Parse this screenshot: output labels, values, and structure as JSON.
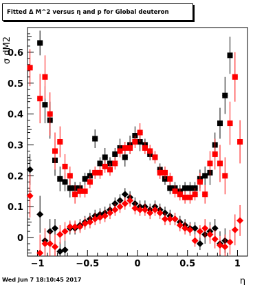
{
  "title": "Fitted Δ M^2 versus η and p for Global deuteron",
  "timestamp": "Wed Jun  7 18:10:45 2017",
  "chart_data": {
    "type": "scatter",
    "title": "Fitted Δ M^2 versus η and p for Global deuteron",
    "xlabel": "η",
    "ylabel": "σ dM2",
    "xlim": [
      -1.1,
      1.1
    ],
    "ylim": [
      -0.06,
      0.68
    ],
    "xticks": [
      -1,
      -0.5,
      0,
      0.5,
      1
    ],
    "xtick_labels": [
      "−1",
      "−0.5",
      "0",
      "0.5",
      "1"
    ],
    "yticks": [
      0,
      0.1,
      0.2,
      0.3,
      0.4,
      0.5,
      0.6
    ],
    "ytick_labels": [
      "0",
      "0.1",
      "0.2",
      "0.3",
      "0.4",
      "0.5",
      "0.6"
    ],
    "grid": false,
    "series": [
      {
        "color": "#000000",
        "marker": "square",
        "points": [
          [
            -0.975,
            0.63,
            0.04
          ],
          [
            -0.925,
            0.43,
            0.06
          ],
          [
            -0.875,
            0.38,
            0.06
          ],
          [
            -0.825,
            0.25,
            0.05
          ],
          [
            -0.775,
            0.19,
            0.04
          ],
          [
            -0.725,
            0.18,
            0.03
          ],
          [
            -0.675,
            0.16,
            0.03
          ],
          [
            -0.625,
            0.16,
            0.02
          ],
          [
            -0.575,
            0.16,
            0.02
          ],
          [
            -0.525,
            0.19,
            0.02
          ],
          [
            -0.475,
            0.2,
            0.02
          ],
          [
            -0.425,
            0.32,
            0.03
          ],
          [
            -0.375,
            0.24,
            0.02
          ],
          [
            -0.325,
            0.26,
            0.03
          ],
          [
            -0.275,
            0.24,
            0.02
          ],
          [
            -0.225,
            0.27,
            0.02
          ],
          [
            -0.175,
            0.29,
            0.03
          ],
          [
            -0.125,
            0.26,
            0.03
          ],
          [
            -0.075,
            0.3,
            0.03
          ],
          [
            -0.025,
            0.33,
            0.03
          ],
          [
            0.025,
            0.31,
            0.03
          ],
          [
            0.075,
            0.3,
            0.02
          ],
          [
            0.125,
            0.27,
            0.02
          ],
          [
            0.175,
            0.26,
            0.02
          ],
          [
            0.225,
            0.22,
            0.02
          ],
          [
            0.275,
            0.19,
            0.02
          ],
          [
            0.325,
            0.16,
            0.02
          ],
          [
            0.375,
            0.16,
            0.02
          ],
          [
            0.425,
            0.15,
            0.02
          ],
          [
            0.475,
            0.16,
            0.02
          ],
          [
            0.525,
            0.16,
            0.02
          ],
          [
            0.575,
            0.16,
            0.02
          ],
          [
            0.625,
            0.19,
            0.03
          ],
          [
            0.675,
            0.2,
            0.03
          ],
          [
            0.725,
            0.21,
            0.04
          ],
          [
            0.775,
            0.3,
            0.04
          ],
          [
            0.825,
            0.37,
            0.05
          ],
          [
            0.875,
            0.46,
            0.06
          ],
          [
            0.925,
            0.59,
            0.06
          ]
        ]
      },
      {
        "color": "#ff0000",
        "marker": "square",
        "points": [
          [
            -1.075,
            0.55,
            0.06
          ],
          [
            -0.975,
            0.45,
            0.08
          ],
          [
            -0.925,
            0.52,
            0.07
          ],
          [
            -0.875,
            0.4,
            0.07
          ],
          [
            -0.825,
            0.28,
            0.06
          ],
          [
            -0.775,
            0.31,
            0.05
          ],
          [
            -0.725,
            0.23,
            0.04
          ],
          [
            -0.675,
            0.2,
            0.03
          ],
          [
            -0.625,
            0.14,
            0.03
          ],
          [
            -0.575,
            0.15,
            0.02
          ],
          [
            -0.525,
            0.15,
            0.02
          ],
          [
            -0.475,
            0.18,
            0.02
          ],
          [
            -0.425,
            0.21,
            0.02
          ],
          [
            -0.375,
            0.21,
            0.02
          ],
          [
            -0.325,
            0.23,
            0.02
          ],
          [
            -0.275,
            0.22,
            0.02
          ],
          [
            -0.225,
            0.24,
            0.02
          ],
          [
            -0.175,
            0.28,
            0.02
          ],
          [
            -0.125,
            0.29,
            0.02
          ],
          [
            -0.075,
            0.29,
            0.02
          ],
          [
            -0.025,
            0.31,
            0.02
          ],
          [
            0.025,
            0.34,
            0.03
          ],
          [
            0.075,
            0.29,
            0.02
          ],
          [
            0.125,
            0.28,
            0.02
          ],
          [
            0.175,
            0.26,
            0.02
          ],
          [
            0.225,
            0.21,
            0.02
          ],
          [
            0.275,
            0.21,
            0.02
          ],
          [
            0.325,
            0.19,
            0.02
          ],
          [
            0.375,
            0.15,
            0.02
          ],
          [
            0.425,
            0.14,
            0.02
          ],
          [
            0.475,
            0.13,
            0.02
          ],
          [
            0.525,
            0.13,
            0.02
          ],
          [
            0.575,
            0.14,
            0.02
          ],
          [
            0.625,
            0.18,
            0.03
          ],
          [
            0.675,
            0.14,
            0.03
          ],
          [
            0.725,
            0.24,
            0.04
          ],
          [
            0.775,
            0.27,
            0.05
          ],
          [
            0.825,
            0.24,
            0.06
          ],
          [
            0.875,
            0.2,
            0.06
          ],
          [
            0.925,
            0.37,
            0.07
          ],
          [
            0.975,
            0.52,
            0.08
          ],
          [
            1.025,
            0.31,
            0.07
          ]
        ]
      },
      {
        "color": "#000000",
        "marker": "diamond",
        "points": [
          [
            -1.075,
            0.22,
            0.05
          ],
          [
            -0.975,
            0.075,
            0.06
          ],
          [
            -0.925,
            -0.01,
            0.04
          ],
          [
            -0.875,
            0.02,
            0.04
          ],
          [
            -0.825,
            0.03,
            0.03
          ],
          [
            -0.775,
            -0.045,
            0.03
          ],
          [
            -0.725,
            -0.04,
            0.03
          ],
          [
            -0.675,
            0.03,
            0.02
          ],
          [
            -0.625,
            0.03,
            0.02
          ],
          [
            -0.575,
            0.04,
            0.02
          ],
          [
            -0.525,
            0.05,
            0.02
          ],
          [
            -0.475,
            0.06,
            0.02
          ],
          [
            -0.425,
            0.07,
            0.02
          ],
          [
            -0.375,
            0.075,
            0.02
          ],
          [
            -0.325,
            0.08,
            0.02
          ],
          [
            -0.275,
            0.09,
            0.02
          ],
          [
            -0.225,
            0.11,
            0.02
          ],
          [
            -0.175,
            0.12,
            0.02
          ],
          [
            -0.125,
            0.14,
            0.02
          ],
          [
            -0.075,
            0.13,
            0.02
          ],
          [
            -0.025,
            0.11,
            0.02
          ],
          [
            0.025,
            0.1,
            0.02
          ],
          [
            0.075,
            0.1,
            0.02
          ],
          [
            0.125,
            0.09,
            0.02
          ],
          [
            0.175,
            0.1,
            0.02
          ],
          [
            0.225,
            0.09,
            0.02
          ],
          [
            0.275,
            0.08,
            0.02
          ],
          [
            0.325,
            0.07,
            0.02
          ],
          [
            0.375,
            0.06,
            0.02
          ],
          [
            0.425,
            0.05,
            0.02
          ],
          [
            0.475,
            0.04,
            0.02
          ],
          [
            0.525,
            0.03,
            0.02
          ],
          [
            0.575,
            0.03,
            0.02
          ],
          [
            0.625,
            -0.02,
            0.02
          ],
          [
            0.675,
            0.01,
            0.03
          ],
          [
            0.725,
            0.02,
            0.03
          ],
          [
            0.775,
            0.03,
            0.03
          ],
          [
            0.825,
            -0.02,
            0.04
          ],
          [
            0.875,
            -0.01,
            0.04
          ]
        ]
      },
      {
        "color": "#ff0000",
        "marker": "diamond",
        "points": [
          [
            -1.075,
            0.135,
            0.07
          ],
          [
            -0.975,
            -0.05,
            0.06
          ],
          [
            -0.925,
            -0.02,
            0.05
          ],
          [
            -0.875,
            -0.02,
            0.04
          ],
          [
            -0.825,
            -0.03,
            0.04
          ],
          [
            -0.775,
            0.01,
            0.03
          ],
          [
            -0.725,
            0.02,
            0.03
          ],
          [
            -0.675,
            0.035,
            0.02
          ],
          [
            -0.625,
            0.035,
            0.02
          ],
          [
            -0.575,
            0.035,
            0.02
          ],
          [
            -0.525,
            0.045,
            0.02
          ],
          [
            -0.475,
            0.05,
            0.02
          ],
          [
            -0.425,
            0.06,
            0.02
          ],
          [
            -0.375,
            0.065,
            0.02
          ],
          [
            -0.325,
            0.07,
            0.02
          ],
          [
            -0.275,
            0.08,
            0.02
          ],
          [
            -0.225,
            0.09,
            0.02
          ],
          [
            -0.175,
            0.1,
            0.02
          ],
          [
            -0.125,
            0.11,
            0.02
          ],
          [
            -0.075,
            0.12,
            0.02
          ],
          [
            -0.025,
            0.095,
            0.02
          ],
          [
            0.025,
            0.09,
            0.02
          ],
          [
            0.075,
            0.09,
            0.02
          ],
          [
            0.125,
            0.08,
            0.02
          ],
          [
            0.175,
            0.09,
            0.02
          ],
          [
            0.225,
            0.08,
            0.02
          ],
          [
            0.275,
            0.06,
            0.02
          ],
          [
            0.325,
            0.06,
            0.02
          ],
          [
            0.375,
            0.06,
            0.02
          ],
          [
            0.425,
            0.04,
            0.02
          ],
          [
            0.475,
            0.03,
            0.02
          ],
          [
            0.525,
            0.025,
            0.02
          ],
          [
            0.575,
            -0.01,
            0.02
          ],
          [
            0.625,
            0.02,
            0.02
          ],
          [
            0.675,
            0.03,
            0.03
          ],
          [
            0.725,
            0.01,
            0.03
          ],
          [
            0.775,
            -0.005,
            0.03
          ],
          [
            0.825,
            -0.025,
            0.03
          ],
          [
            0.875,
            -0.03,
            0.04
          ],
          [
            0.925,
            -0.015,
            0.04
          ],
          [
            0.975,
            0.025,
            0.05
          ],
          [
            1.025,
            0.055,
            0.05
          ]
        ]
      }
    ]
  }
}
